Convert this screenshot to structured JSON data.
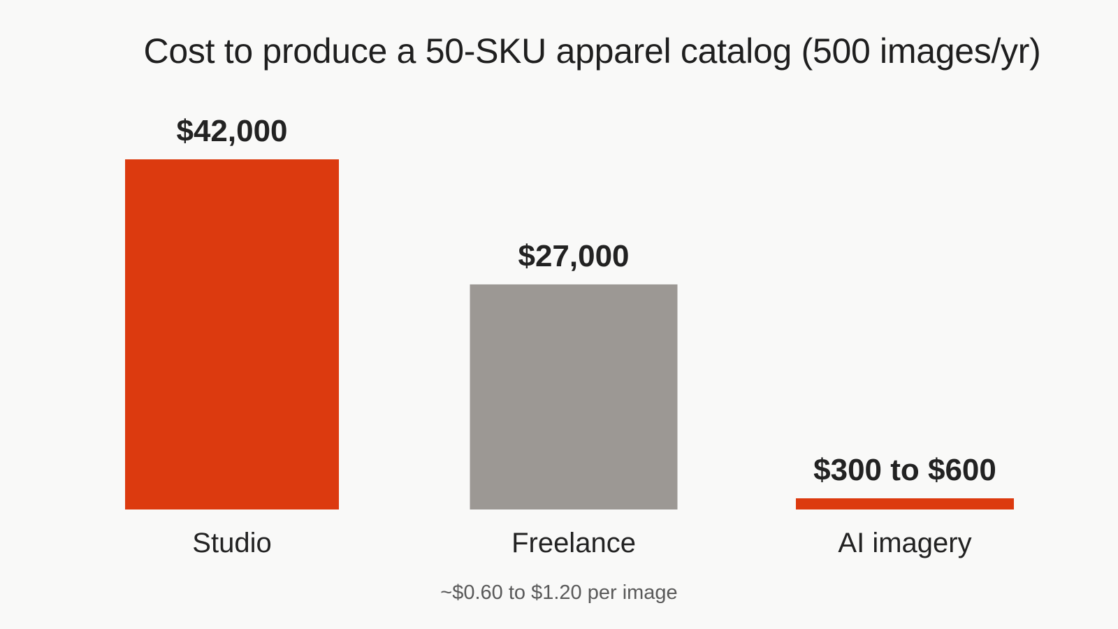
{
  "chart_data": {
    "type": "bar",
    "title": "Cost to produce a 50-SKU apparel catalog (500 images/yr)",
    "xlabel": "",
    "ylabel": "",
    "ylim": [
      0,
      42000
    ],
    "grid": false,
    "categories": [
      "Studio",
      "Freelance",
      "AI imagery"
    ],
    "values": [
      42000,
      27000,
      600
    ],
    "value_labels": [
      "$42,000",
      "$27,000",
      "$300 to $600"
    ],
    "colors": [
      "#dc3a0f",
      "#9c9894",
      "#dc3a0f"
    ],
    "footnote": "~$0.60 to $1.20 per image"
  }
}
